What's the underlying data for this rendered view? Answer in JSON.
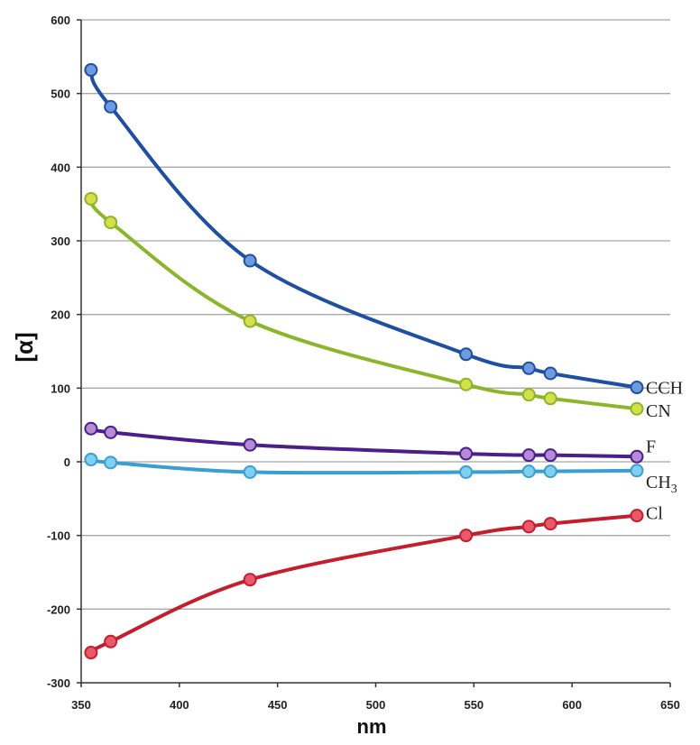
{
  "chart_data": {
    "type": "line",
    "xlabel": "nm",
    "ylabel": "[α]",
    "xlim": [
      350,
      650
    ],
    "ylim": [
      -300,
      600
    ],
    "xticks": [
      350,
      400,
      450,
      500,
      550,
      600,
      650
    ],
    "yticks": [
      -300,
      -200,
      -100,
      0,
      100,
      200,
      300,
      400,
      500,
      600
    ],
    "grid": "horizontal",
    "x": [
      355,
      365,
      436,
      546,
      578,
      589,
      633
    ],
    "series": [
      {
        "name": "CCH",
        "color": "#1f4fa3",
        "marker": "#6e9be0",
        "values": [
          532,
          482,
          273,
          146,
          127,
          120,
          101
        ]
      },
      {
        "name": "CN",
        "color": "#8bb52a",
        "marker": "#d4e04a",
        "values": [
          357,
          325,
          191,
          105,
          91,
          86,
          72
        ]
      },
      {
        "name": "F",
        "color": "#4a1f8a",
        "marker": "#b58ad6",
        "values": [
          45,
          40,
          23,
          11,
          9,
          9,
          7
        ]
      },
      {
        "name": "CH3",
        "sub": "3",
        "color": "#3a9fd0",
        "marker": "#7fd0f0",
        "values": [
          3,
          -1,
          -14,
          -14,
          -13,
          -13,
          -12
        ]
      },
      {
        "name": "Cl",
        "color": "#c41e2e",
        "marker": "#e85a6a",
        "values": [
          -259,
          -244,
          -160,
          -100,
          -88,
          -84,
          -73
        ]
      }
    ]
  }
}
